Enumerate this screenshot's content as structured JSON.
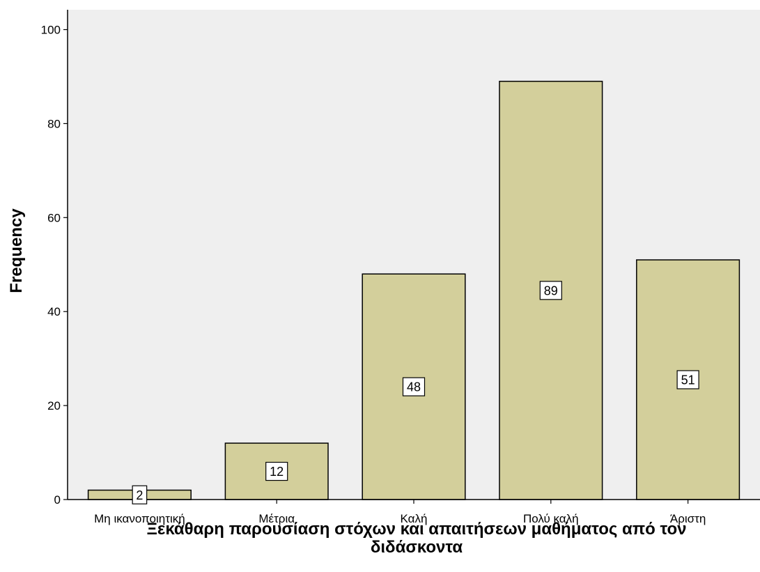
{
  "chart_data": {
    "type": "bar",
    "categories": [
      "Μη ικανοποιητική",
      "Μέτρια",
      "Καλή",
      "Πολύ καλή",
      "Άριστη"
    ],
    "values": [
      2,
      12,
      48,
      89,
      51
    ],
    "data_labels": [
      "2",
      "12",
      "48",
      "89",
      "51"
    ],
    "title": "",
    "xlabel_lines": [
      "Ξεκάθαρη παρουσίαση στόχων και απαιτήσεων μαθήματος από τον",
      "διδάσκοντα"
    ],
    "ylabel": "Frequency",
    "ylim": [
      0,
      104
    ],
    "yticks": [
      0,
      20,
      40,
      60,
      80,
      100
    ],
    "ytick_labels": [
      "0",
      "20",
      "40",
      "60",
      "80",
      "100"
    ],
    "grid": false,
    "legend": "none",
    "colors": {
      "bar_fill": "#d3cf9b",
      "bar_stroke": "#000000",
      "plot_background": "#efefef",
      "page_background": "#ffffff"
    }
  }
}
